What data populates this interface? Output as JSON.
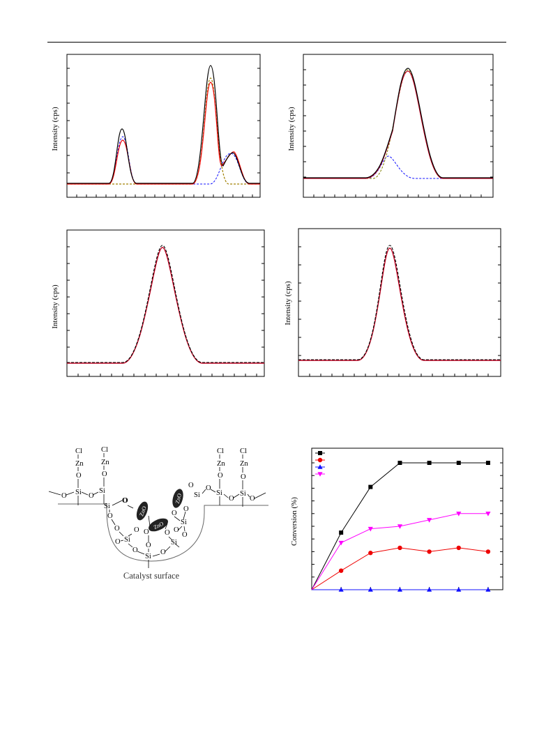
{
  "figures": {
    "panel_a": {
      "ylabel": "Intensity (cps)"
    },
    "panel_b": {
      "ylabel": "Intensity (cps)"
    },
    "panel_c": {
      "ylabel": "Intensity (cps)"
    },
    "panel_d": {
      "ylabel": "Intensity (cps)"
    },
    "scheme": {
      "caption": "Catalyst surface",
      "zno_label": "ZnO",
      "atoms": {
        "cl": "Cl",
        "zn": "Zn",
        "o": "O",
        "si": "Si"
      }
    },
    "conversion": {
      "ylabel": "Conversion (%)"
    }
  },
  "colors": {
    "black": "#000000",
    "red": "#ee0000",
    "blue": "#1010ff",
    "magenta": "#ff00ff",
    "olive": "#808000",
    "purple": "#7030a0"
  },
  "chart_data": [
    {
      "type": "line",
      "title": "",
      "xlabel": "",
      "ylabel": "Intensity (cps)",
      "x": [
        0,
        5,
        10,
        15,
        20,
        25,
        28,
        30,
        33,
        36,
        40,
        45,
        50
      ],
      "series": [
        {
          "values": [
            0.02,
            0.02,
            0.03,
            0.4,
            0.03,
            0.02,
            0.08,
            0.86,
            0.12,
            0.2,
            0.03,
            0.02,
            0.02
          ]
        }
      ]
    },
    {
      "type": "line",
      "title": "",
      "xlabel": "",
      "ylabel": "Intensity (cps)",
      "x": [
        0,
        5,
        10,
        15,
        20,
        25,
        30,
        35,
        40,
        45,
        50
      ],
      "series": [
        {
          "values": [
            0.02,
            0.02,
            0.02,
            0.04,
            0.2,
            0.72,
            0.95,
            0.55,
            0.1,
            0.02,
            0.02
          ]
        }
      ]
    },
    {
      "type": "line",
      "title": "",
      "xlabel": "",
      "ylabel": "Intensity (cps)",
      "x": [
        0,
        10,
        20,
        25,
        30,
        35,
        40,
        50,
        60,
        70,
        80
      ],
      "series": [
        {
          "values": [
            0.02,
            0.02,
            0.03,
            0.25,
            0.95,
            0.3,
            0.03,
            0.02,
            0.02,
            0.02,
            0.02
          ]
        }
      ]
    },
    {
      "type": "line",
      "title": "",
      "xlabel": "",
      "ylabel": "Intensity (cps)",
      "x": [
        0,
        10,
        20,
        25,
        30,
        35,
        40,
        50,
        60,
        70,
        80
      ],
      "series": [
        {
          "values": [
            0.02,
            0.02,
            0.03,
            0.2,
            0.92,
            0.4,
            0.04,
            0.02,
            0.02,
            0.02,
            0.02
          ]
        }
      ]
    },
    {
      "type": "line",
      "title": "",
      "xlabel": "",
      "ylabel": "Conversion (%)",
      "x": [
        0,
        1,
        2,
        3,
        4,
        5,
        6
      ],
      "series": [
        {
          "color": "#000000",
          "marker": "square",
          "values": [
            0,
            45,
            81,
            100,
            100,
            100,
            100
          ]
        },
        {
          "color": "#ee0000",
          "marker": "circle",
          "values": [
            0,
            15,
            29,
            33,
            30,
            33,
            30
          ]
        },
        {
          "color": "#1010ff",
          "marker": "triangle-up",
          "values": [
            0,
            0,
            0,
            0,
            0,
            0,
            0
          ]
        },
        {
          "color": "#ff00ff",
          "marker": "triangle-down",
          "values": [
            0,
            37,
            48,
            50,
            55,
            60,
            60
          ]
        }
      ]
    }
  ]
}
